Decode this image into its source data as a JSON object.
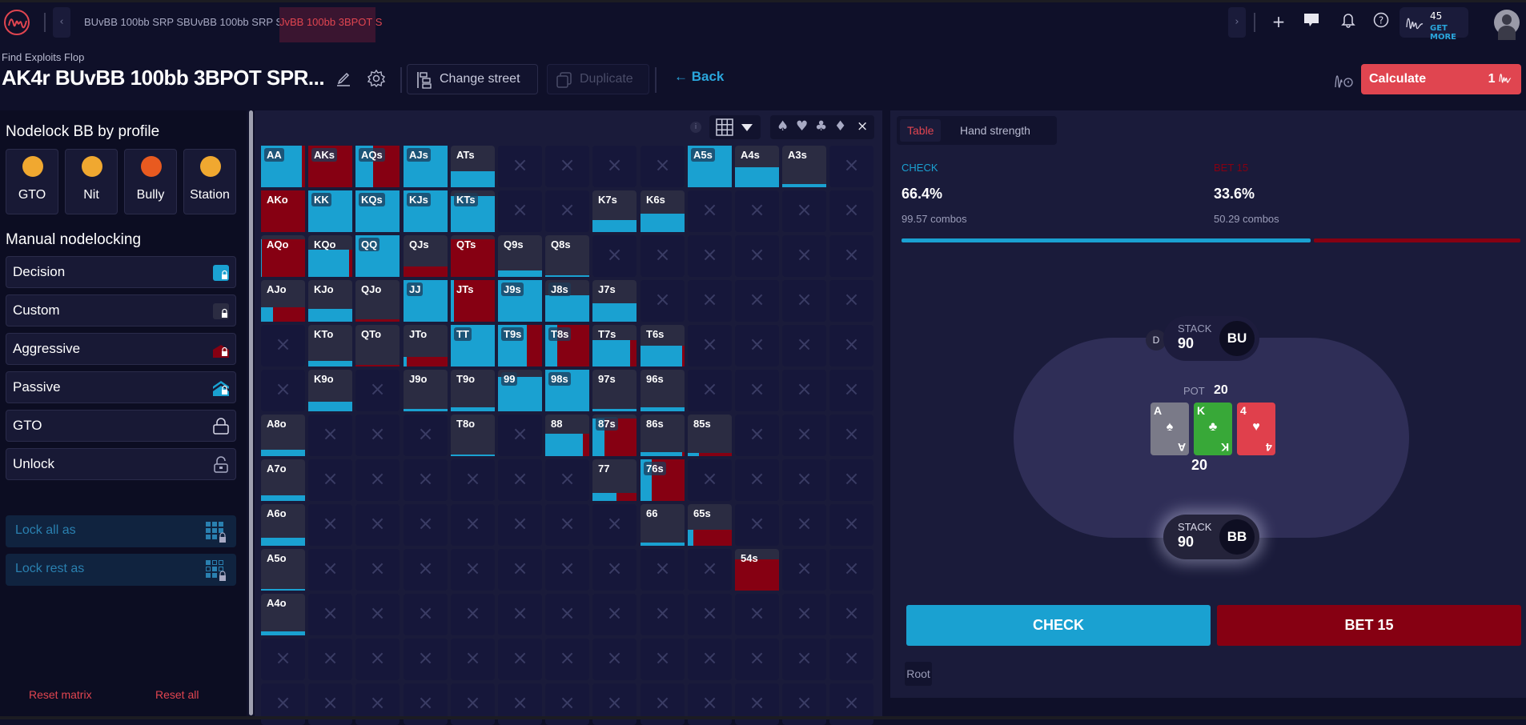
{
  "topbar": {
    "tabs": [
      {
        "label": "BUvBB 100bb SRP S",
        "active": false
      },
      {
        "label": "BUvBB 100bb SRP S",
        "active": false
      },
      {
        "label": "JvBB 100bb 3BPOT S",
        "active": true
      }
    ],
    "prev_icon": "chevron-left-icon",
    "next_icon": "chevron-right-icon",
    "actions": [
      "plus-icon",
      "chat-icon",
      "bell-icon",
      "help-icon"
    ],
    "credits": {
      "value": "45",
      "cta": "GET MORE"
    }
  },
  "header": {
    "subtitle": "Find Exploits Flop",
    "title": "AK4r BUvBB 100bb 3BPOT SPR...",
    "change_street": "Change street",
    "duplicate": "Duplicate",
    "back": "Back",
    "calculate": "Calculate",
    "calculate_cost": "1"
  },
  "left_panel": {
    "profile_heading": "Nodelock BB by profile",
    "profiles": [
      {
        "label": "GTO",
        "emoji": "nerd-face",
        "color": "#f0a830"
      },
      {
        "label": "Nit",
        "emoji": "screaming-face",
        "color": "#f0a830"
      },
      {
        "label": "Bully",
        "emoji": "angry-face",
        "color": "#e85a20"
      },
      {
        "label": "Station",
        "emoji": "zany-face",
        "color": "#f0a830"
      }
    ],
    "manual_heading": "Manual nodelocking",
    "lock_options": [
      {
        "label": "Decision",
        "icon": "lock-decision-icon"
      },
      {
        "label": "Custom",
        "icon": "lock-custom-icon"
      },
      {
        "label": "Aggressive",
        "icon": "lock-aggressive-icon"
      },
      {
        "label": "Passive",
        "icon": "lock-passive-icon"
      },
      {
        "label": "GTO",
        "icon": "lock-icon"
      },
      {
        "label": "Unlock",
        "icon": "unlock-icon"
      }
    ],
    "lock_all": "Lock all as",
    "lock_rest": "Lock rest as",
    "reset_matrix": "Reset matrix",
    "reset_all": "Reset all"
  },
  "matrix": {
    "colors": {
      "check": "#1aa1d1",
      "bet": "#860012",
      "empty": "#2b2c42"
    },
    "rows": [
      [
        [
          "AA",
          1,
          0.93,
          0.07,
          1
        ],
        [
          "AKs",
          1,
          0,
          1,
          1
        ],
        [
          "AQs",
          1,
          0.4,
          0.6,
          1
        ],
        [
          "AJs",
          1,
          1,
          0,
          1
        ],
        [
          "ATs",
          0,
          1,
          0,
          0.38
        ],
        null,
        null,
        null,
        null,
        [
          "A5s",
          1,
          1,
          0,
          1
        ],
        [
          "A4s",
          0,
          1,
          0,
          0.48
        ],
        [
          "A3s",
          0,
          1,
          0,
          0.08
        ],
        null
      ],
      [
        [
          "AKo",
          0,
          0,
          1,
          1
        ],
        [
          "KK",
          1,
          1,
          0,
          1
        ],
        [
          "KQs",
          1,
          1,
          0,
          1
        ],
        [
          "KJs",
          1,
          1,
          0,
          1
        ],
        [
          "KTs",
          1,
          1,
          0,
          0.86
        ],
        null,
        null,
        [
          "K7s",
          0,
          1,
          0,
          0.28
        ],
        [
          "K6s",
          0,
          1,
          0,
          0.44
        ],
        null,
        null,
        null,
        null
      ],
      [
        [
          "AQo",
          0,
          0.02,
          0.98,
          0.9
        ],
        [
          "KQo",
          0,
          0.92,
          0.08,
          0.65
        ],
        [
          "QQ",
          1,
          1,
          0,
          1
        ],
        [
          "QJs",
          0,
          0,
          1,
          0.25
        ],
        [
          "QTs",
          0,
          0,
          1,
          0.9
        ],
        [
          "Q9s",
          0,
          1,
          0,
          0.15
        ],
        [
          "Q8s",
          0,
          1,
          0,
          0.03
        ],
        null,
        null,
        null,
        null,
        null,
        null
      ],
      [
        [
          "AJo",
          0,
          0.28,
          0.72,
          0.35
        ],
        [
          "KJo",
          0,
          1,
          0,
          0.3
        ],
        [
          "QJo",
          0,
          0,
          1,
          0.06
        ],
        [
          "JJ",
          1,
          1,
          0,
          1
        ],
        [
          "JTs",
          0,
          0.08,
          0.92,
          1
        ],
        [
          "J9s",
          1,
          1,
          0,
          1
        ],
        [
          "J8s",
          1,
          1,
          0,
          0.64
        ],
        [
          "J7s",
          0,
          1,
          0,
          0.45
        ],
        null,
        null,
        null,
        null,
        null
      ],
      [
        null,
        [
          "KTo",
          0,
          1,
          0,
          0.14
        ],
        [
          "QTo",
          0,
          0,
          1,
          0.03
        ],
        [
          "JTo",
          0,
          0.08,
          0.92,
          0.24
        ],
        [
          "TT",
          1,
          1,
          0,
          1
        ],
        [
          "T9s",
          1,
          0.66,
          0.34,
          1
        ],
        [
          "T8s",
          1,
          0.28,
          0.72,
          1
        ],
        [
          "T7s",
          0,
          0.85,
          0.15,
          0.64
        ],
        [
          "T6s",
          0,
          0.94,
          0.06,
          0.5
        ],
        null,
        null,
        null,
        null
      ],
      [
        null,
        [
          "K9o",
          0,
          1,
          0,
          0.24
        ],
        null,
        [
          "J9o",
          0,
          1,
          0,
          0.05
        ],
        [
          "T9o",
          0,
          1,
          0,
          0.1
        ],
        [
          "99",
          1,
          1,
          0,
          0.82
        ],
        [
          "98s",
          1,
          1,
          0,
          1
        ],
        [
          "97s",
          0,
          1,
          0,
          0.05
        ],
        [
          "96s",
          0,
          1,
          0,
          0.1
        ],
        null,
        null,
        null,
        null
      ],
      [
        [
          "A8o",
          0,
          1,
          0,
          0.16
        ],
        null,
        null,
        null,
        [
          "T8o",
          0,
          1,
          0,
          0.03
        ],
        null,
        [
          "88",
          0,
          0.86,
          0.14,
          0.54
        ],
        [
          "87s",
          1,
          0.27,
          0.73,
          0.9
        ],
        [
          "86s",
          0,
          0.94,
          0.06,
          0.1
        ],
        [
          "85s",
          0,
          0.25,
          0.75,
          0.07
        ],
        null,
        null,
        null
      ],
      [
        [
          "A7o",
          0,
          1,
          0,
          0.14
        ],
        null,
        null,
        null,
        null,
        null,
        null,
        [
          "77",
          0,
          0.55,
          0.45,
          0.2
        ],
        [
          "76s",
          1,
          0.25,
          0.75,
          1
        ],
        null,
        null,
        null,
        null
      ],
      [
        [
          "A6o",
          0,
          1,
          0,
          0.2
        ],
        null,
        null,
        null,
        null,
        null,
        null,
        null,
        [
          "66",
          0,
          1,
          0,
          0.08
        ],
        [
          "65s",
          0,
          0.12,
          0.88,
          0.38
        ],
        null,
        null,
        null
      ],
      [
        [
          "A5o",
          0,
          1,
          0,
          0.04
        ],
        null,
        null,
        null,
        null,
        null,
        null,
        null,
        null,
        null,
        [
          "54s",
          0,
          0,
          1,
          0.75
        ],
        null,
        null
      ],
      [
        [
          "A4o",
          0,
          1,
          0,
          0.1
        ],
        null,
        null,
        null,
        null,
        null,
        null,
        null,
        null,
        null,
        null,
        null,
        null
      ],
      [
        null,
        null,
        null,
        null,
        null,
        null,
        null,
        null,
        null,
        null,
        null,
        null,
        null
      ],
      [
        null,
        null,
        null,
        null,
        null,
        null,
        null,
        null,
        null,
        null,
        null,
        null,
        null
      ]
    ]
  },
  "right_panel": {
    "tabs": [
      {
        "label": "Table",
        "active": true
      },
      {
        "label": "Hand strength",
        "active": false
      }
    ],
    "actions": [
      {
        "name": "CHECK",
        "pct": "66.4%",
        "combos": "99.57 combos",
        "color": "#1aa1d1"
      },
      {
        "name": "BET 15",
        "pct": "33.6%",
        "combos": "50.29 combos",
        "color": "#860012"
      }
    ],
    "table": {
      "top_seat": {
        "stack_label": "STACK",
        "stack": "90",
        "position": "BU",
        "dealer": "D"
      },
      "bottom_seat": {
        "stack_label": "STACK",
        "stack": "90",
        "position": "BB"
      },
      "pot_label": "POT",
      "pot": "20",
      "pot_below": "20",
      "board": [
        {
          "rank": "A",
          "suit": "♠",
          "color": "#7a7a88"
        },
        {
          "rank": "K",
          "suit": "♣",
          "color": "#38a838"
        },
        {
          "rank": "4",
          "suit": "♥",
          "color": "#e0404c"
        }
      ]
    },
    "buttons": {
      "check": "CHECK",
      "bet": "BET 15"
    },
    "breadcrumb": "Root"
  }
}
